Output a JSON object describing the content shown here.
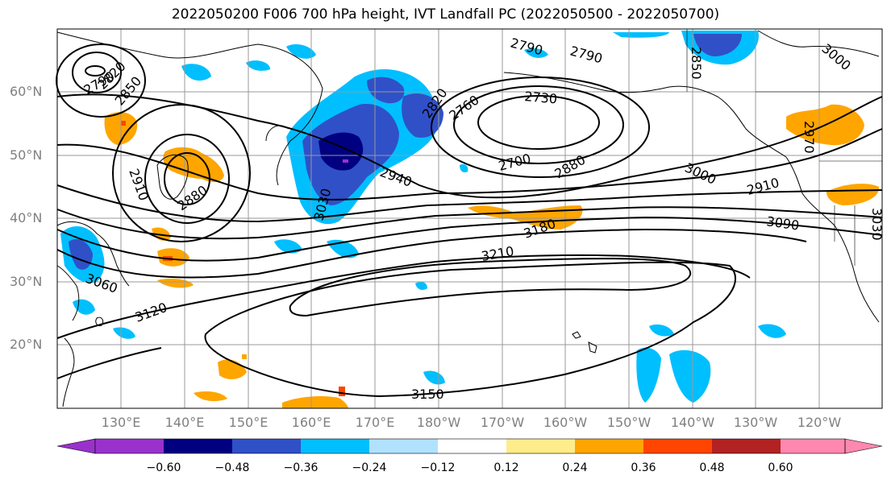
{
  "title": "2022050200 F006 700 hPa height, IVT Landfall PC (2022050500 - 2022050700)",
  "lat_labels": [
    "60°N",
    "50°N",
    "40°N",
    "30°N",
    "20°N"
  ],
  "lon_labels": [
    "130°E",
    "140°E",
    "150°E",
    "160°E",
    "170°E",
    "180°W",
    "170°W",
    "160°W",
    "150°W",
    "140°W",
    "130°W",
    "120°W"
  ],
  "contour_labels": [
    "2790",
    "2820",
    "2850",
    "2910",
    "2880",
    "3030",
    "3060",
    "3120",
    "2940",
    "2820",
    "2760",
    "2730",
    "2790",
    "2790",
    "2700",
    "2880",
    "3000",
    "2910",
    "3090",
    "3180",
    "3210",
    "3150",
    "2850",
    "2970",
    "3000",
    "3030"
  ],
  "colorbar": {
    "ticks": [
      "−0.60",
      "−0.48",
      "−0.36",
      "−0.24",
      "−0.12",
      "0.12",
      "0.24",
      "0.36",
      "0.48",
      "0.60"
    ],
    "colors": [
      "#9932cc",
      "#000080",
      "#3050c8",
      "#00bfff",
      "#b0e2ff",
      "#ffffff",
      "#ffec8b",
      "#ffa500",
      "#ff4500",
      "#b22222",
      "#ff88b0"
    ]
  }
}
